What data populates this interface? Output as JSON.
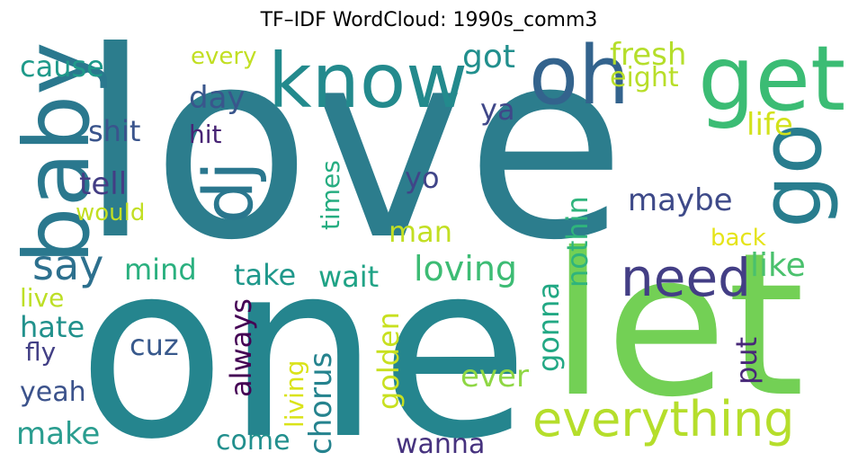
{
  "title": "TF–IDF WordCloud: 1990s_comm3",
  "words": [
    {
      "text": "love",
      "color": "#2c7d8d"
    },
    {
      "text": "one",
      "color": "#25858e"
    },
    {
      "text": "let",
      "color": "#73d055"
    },
    {
      "text": "know",
      "color": "#238a8d"
    },
    {
      "text": "get",
      "color": "#3bbc74"
    },
    {
      "text": "oh",
      "color": "#33638d"
    },
    {
      "text": "baby",
      "color": "#2a788e"
    },
    {
      "text": "dj",
      "color": "#2a778e"
    },
    {
      "text": "go",
      "color": "#287d8e"
    },
    {
      "text": "everything",
      "color": "#b5de2b"
    },
    {
      "text": "need",
      "color": "#433e85"
    },
    {
      "text": "say",
      "color": "#2d708e"
    },
    {
      "text": "loving",
      "color": "#3dbc74"
    },
    {
      "text": "maybe",
      "color": "#3e4a89"
    },
    {
      "text": "got",
      "color": "#218f8d"
    },
    {
      "text": "fresh",
      "color": "#b5de2b"
    },
    {
      "text": "eight",
      "color": "#b8de29"
    },
    {
      "text": "life",
      "color": "#d2e21b"
    },
    {
      "text": "like",
      "color": "#4ac16d"
    },
    {
      "text": "cause",
      "color": "#1f9a8a"
    },
    {
      "text": "day",
      "color": "#39568c"
    },
    {
      "text": "shit",
      "color": "#3a548c"
    },
    {
      "text": "hit",
      "color": "#482475"
    },
    {
      "text": "tell",
      "color": "#433d84"
    },
    {
      "text": "would",
      "color": "#c2df23"
    },
    {
      "text": "times",
      "color": "#26ad81"
    },
    {
      "text": "yo",
      "color": "#404588"
    },
    {
      "text": "ya",
      "color": "#3f4889"
    },
    {
      "text": "man",
      "color": "#c2df23"
    },
    {
      "text": "back",
      "color": "#e5e419"
    },
    {
      "text": "nothin",
      "color": "#2fb47c"
    },
    {
      "text": "mind",
      "color": "#2ab07f"
    },
    {
      "text": "take",
      "color": "#1f988b"
    },
    {
      "text": "wait",
      "color": "#20a386"
    },
    {
      "text": "live",
      "color": "#bddf26"
    },
    {
      "text": "hate",
      "color": "#21918c"
    },
    {
      "text": "fly",
      "color": "#423f85"
    },
    {
      "text": "cuz",
      "color": "#38598c"
    },
    {
      "text": "always",
      "color": "#440154"
    },
    {
      "text": "chorus",
      "color": "#25838e"
    },
    {
      "text": "golden",
      "color": "#c8e020"
    },
    {
      "text": "gonna",
      "color": "#22a884"
    },
    {
      "text": "put",
      "color": "#482878"
    },
    {
      "text": "ever",
      "color": "#8fd744"
    },
    {
      "text": "living",
      "color": "#dae319"
    },
    {
      "text": "yeah",
      "color": "#3b528b"
    },
    {
      "text": "make",
      "color": "#2a9d8f"
    },
    {
      "text": "come",
      "color": "#218f8d"
    },
    {
      "text": "wanna",
      "color": "#46327e"
    },
    {
      "text": "every",
      "color": "#c2df23"
    }
  ]
}
